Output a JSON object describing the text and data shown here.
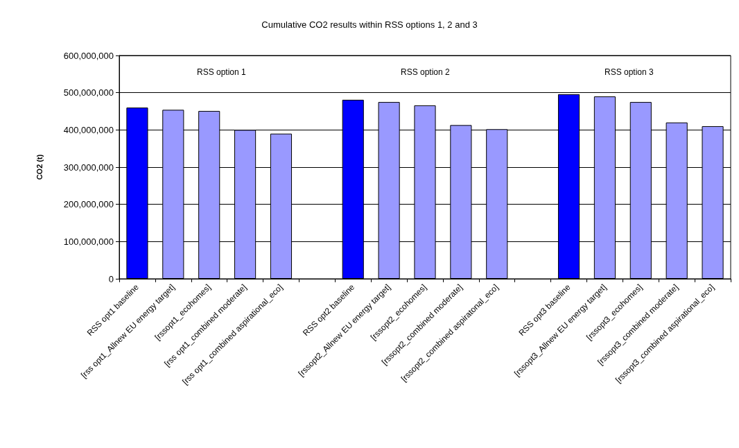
{
  "chart_data": {
    "type": "bar",
    "title": "Cumulative CO2 results within RSS options 1, 2 and 3",
    "ylabel": "CO2 (t)",
    "categories": [
      "RSS opt1 baseline",
      "[rss opt1_Allnew EU energy target]",
      "[rssopt1_ecohomes]",
      "[rss opt1_combined moderate]",
      "[rss opt1_combined aspirational_eco]",
      null,
      "RSS opt2 baseline",
      "[rssopt2_Allnew EU energy target]",
      "[rssopt2_ecohomes]",
      "[rssopt2_combined moderate]",
      "[rssopt2_combined aspiratonal_eco]",
      null,
      "RSS opt3 baseline",
      "[rssopt3_Allnew EU energy target]",
      "[rssopt3_ecohomes]",
      "[rssopt3_combined moderate]",
      "[rssopt3_combined aspirational_eco]"
    ],
    "values": [
      460000000,
      454000000,
      451000000,
      400000000,
      390000000,
      null,
      481000000,
      475000000,
      466000000,
      413000000,
      402000000,
      null,
      496000000,
      490000000,
      475000000,
      420000000,
      410000000
    ],
    "colors": [
      "#0000ff",
      "#9999ff",
      "#9999ff",
      "#9999ff",
      "#9999ff",
      null,
      "#0000ff",
      "#9999ff",
      "#9999ff",
      "#9999ff",
      "#9999ff",
      null,
      "#0000ff",
      "#9999ff",
      "#9999ff",
      "#9999ff",
      "#9999ff"
    ],
    "ylim": [
      0,
      600000000
    ],
    "yticks": [
      0,
      {
        "value": 100000000,
        "label": "100,000,000"
      },
      {
        "value": 200000000,
        "label": "200,000,000"
      },
      {
        "value": 300000000,
        "label": "300,000,000"
      },
      {
        "value": 400000000,
        "label": "400,000,000"
      },
      {
        "value": 500000000,
        "label": "500,000,000"
      },
      {
        "value": 600000000,
        "label": "600,000,000"
      }
    ],
    "grid": "y",
    "annotations": [
      "RSS option 1",
      "RSS option 2",
      "RSS option 3"
    ]
  }
}
